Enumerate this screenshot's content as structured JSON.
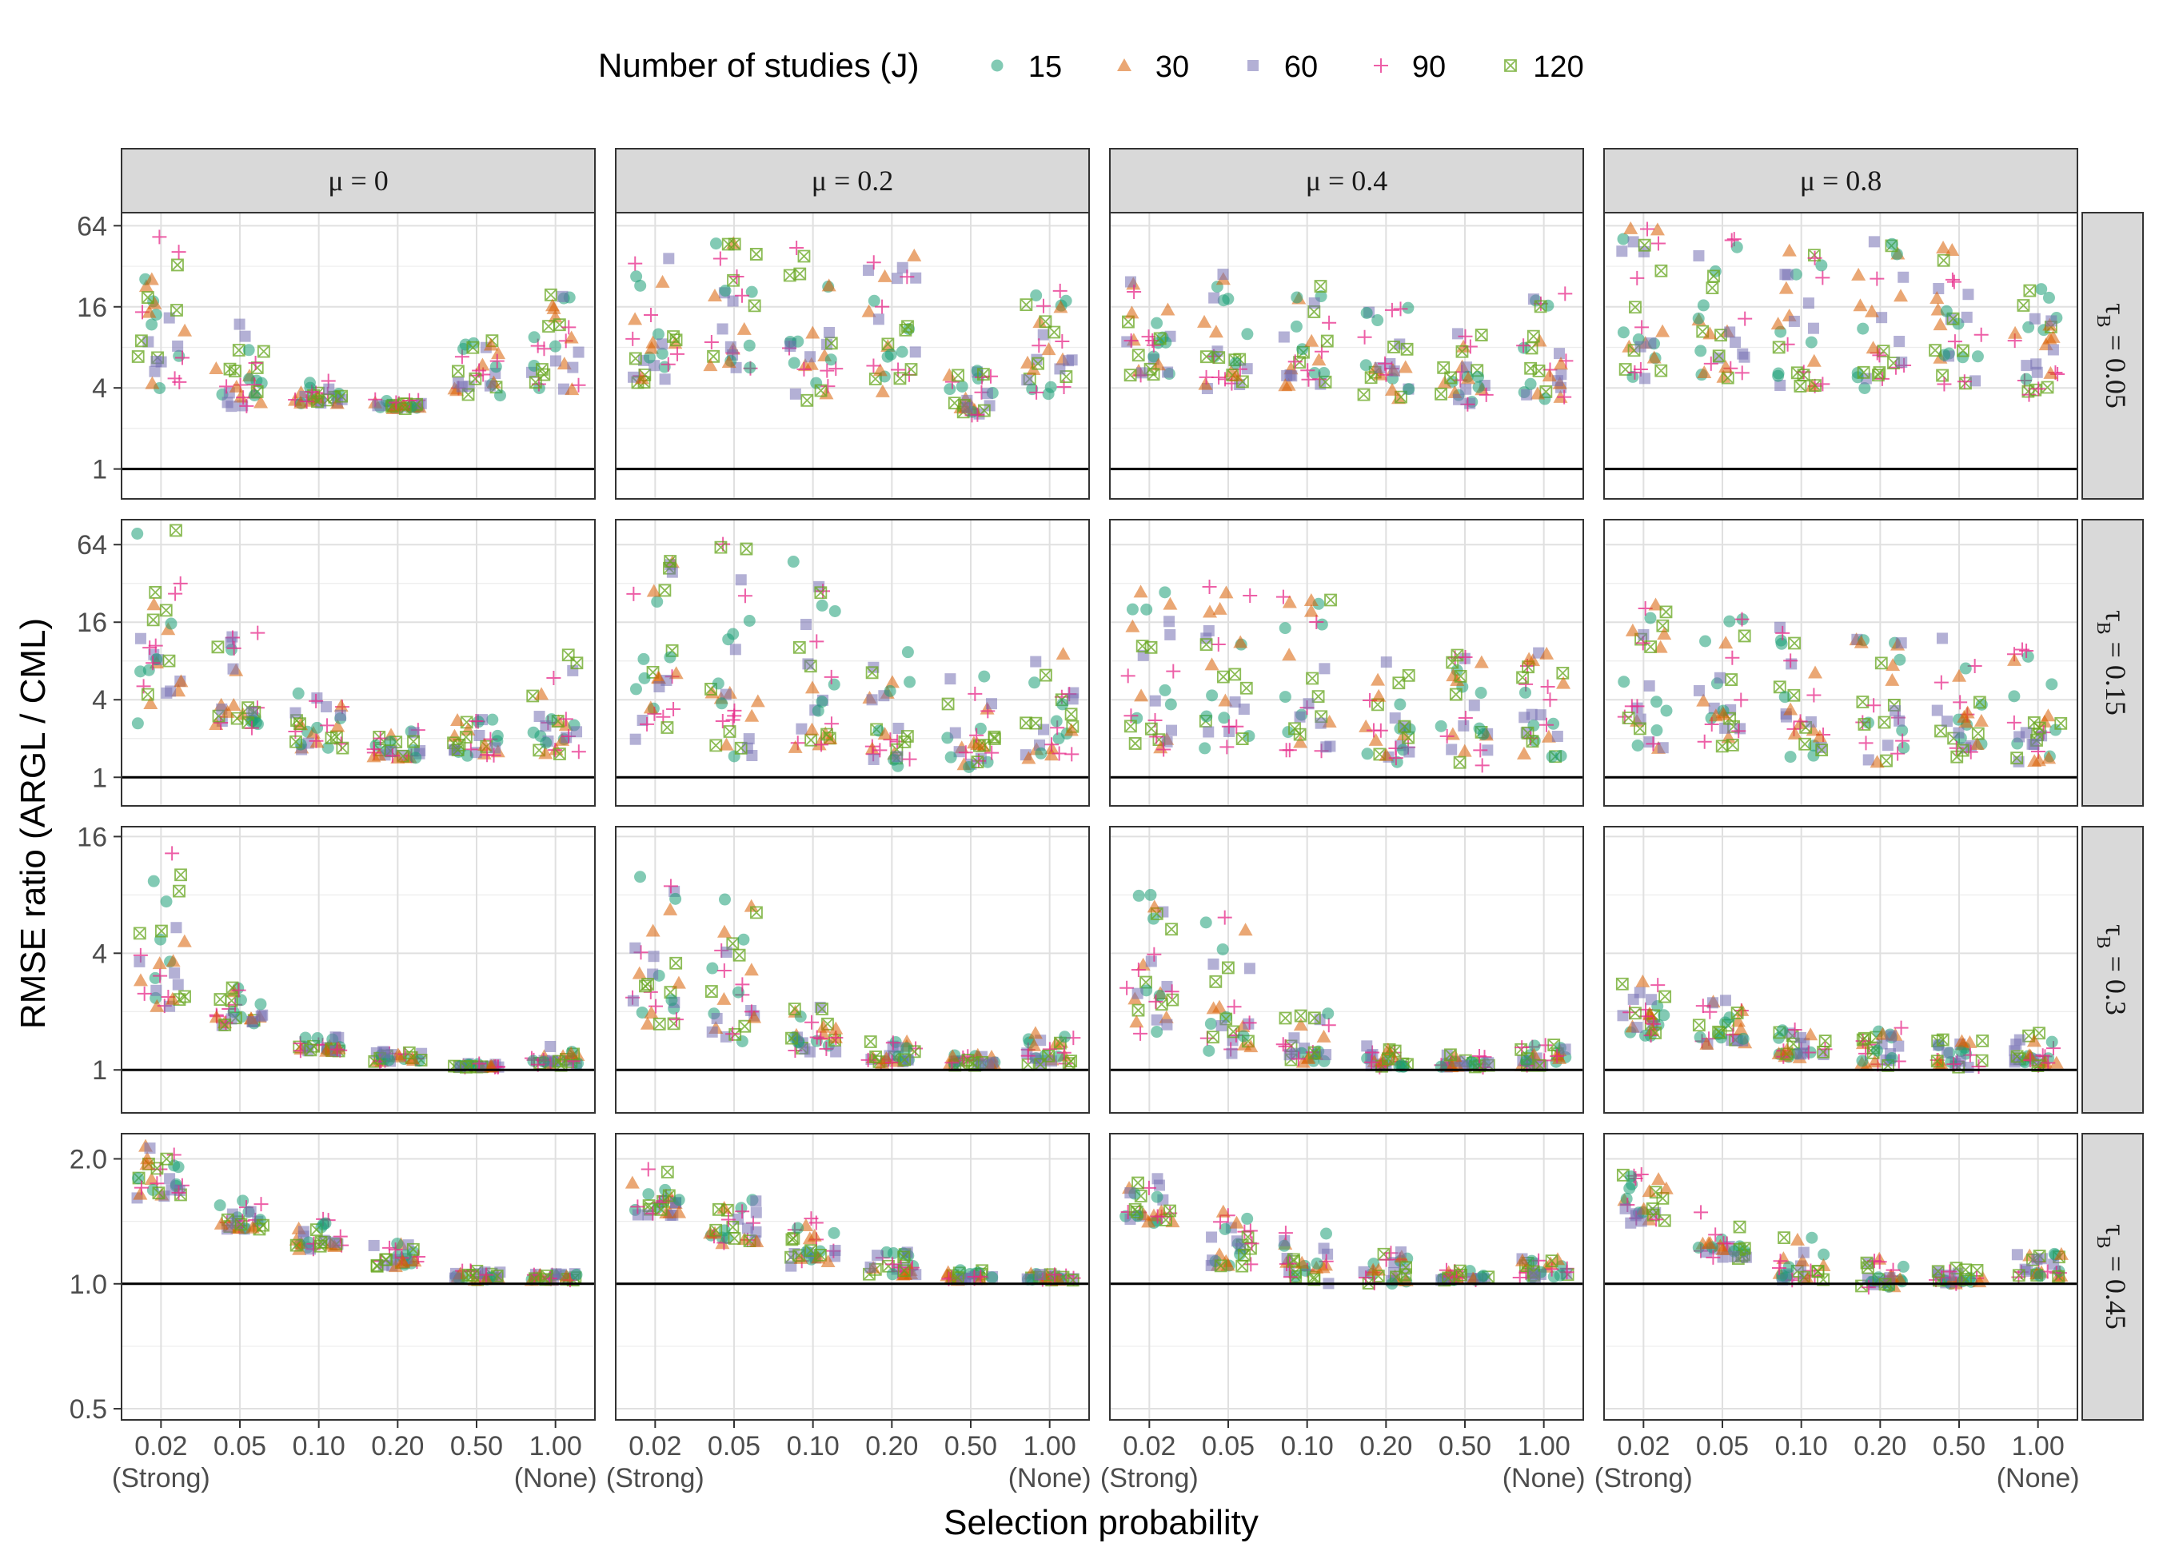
{
  "chart_data": {
    "type": "scatter",
    "xlabel": "Selection probability",
    "ylabel": "RMSE ratio (ARGL / CML)",
    "x_ticks": [
      "0.02",
      "0.05",
      "0.10",
      "0.20",
      "0.50",
      "1.00"
    ],
    "x_extreme_labels": {
      "first": "(Strong)",
      "last": "(None)"
    },
    "legend": {
      "title": "Number of studies (J)",
      "position": "top",
      "entries": [
        {
          "label": "15",
          "shape": "circle",
          "color": "#1b9e77"
        },
        {
          "label": "30",
          "shape": "triangle",
          "color": "#d95f02"
        },
        {
          "label": "60",
          "shape": "square",
          "color": "#7570b3"
        },
        {
          "label": "90",
          "shape": "plus",
          "color": "#e7298a"
        },
        {
          "label": "120",
          "shape": "boxed-x",
          "color": "#66a61e"
        }
      ]
    },
    "columns": [
      {
        "label_sym": "μ",
        "label_val": " = 0",
        "mu": 0
      },
      {
        "label_sym": "μ",
        "label_val": " = 0.2",
        "mu": 0.2
      },
      {
        "label_sym": "μ",
        "label_val": " = 0.4",
        "mu": 0.4
      },
      {
        "label_sym": "μ",
        "label_val": " = 0.8",
        "mu": 0.8
      }
    ],
    "rows": [
      {
        "label_sym": "τ",
        "label_sub": "B",
        "label_val": " = 0.05",
        "tau": 0.05,
        "scale": "log2",
        "ylim": [
          0.6,
          80
        ],
        "yticks": [
          1,
          4,
          16,
          64
        ],
        "ytick_labels": [
          "1",
          "4",
          "16",
          "64"
        ]
      },
      {
        "label_sym": "τ",
        "label_sub": "B",
        "label_val": " = 0.15",
        "tau": 0.15,
        "scale": "log2",
        "ylim": [
          0.6,
          100
        ],
        "yticks": [
          1,
          4,
          16,
          64
        ],
        "ytick_labels": [
          "1",
          "4",
          "16",
          "64"
        ]
      },
      {
        "label_sym": "τ",
        "label_sub": "B",
        "label_val": " = 0.3",
        "tau": 0.3,
        "scale": "log2",
        "ylim": [
          0.6,
          18
        ],
        "yticks": [
          1,
          4,
          16
        ],
        "ytick_labels": [
          "1",
          "4",
          "16"
        ]
      },
      {
        "label_sym": "τ",
        "label_sub": "B",
        "label_val": " = 0.45",
        "tau": 0.45,
        "scale": "log2",
        "ylim": [
          0.47,
          2.3
        ],
        "yticks": [
          0.5,
          1,
          2
        ],
        "ytick_labels": [
          "0.5",
          "1.0",
          "2.0"
        ]
      }
    ],
    "reference_line": 1,
    "grid": true,
    "series_summary": [
      [
        [
          [
            3.3,
            60
          ],
          [
            2.9,
            12
          ],
          [
            3.0,
            4.6
          ],
          [
            2.8,
            3.3
          ],
          [
            3.4,
            13
          ],
          [
            3.8,
            20
          ]
        ],
        [
          [
            4.3,
            50
          ],
          [
            4.6,
            55
          ],
          [
            3.2,
            58
          ],
          [
            3.7,
            40
          ],
          [
            2.4,
            5.5
          ],
          [
            3.6,
            23
          ]
        ],
        [
          [
            4.9,
            34
          ],
          [
            3.9,
            30
          ],
          [
            4.1,
            23
          ],
          [
            3.2,
            17
          ],
          [
            3.0,
            12
          ],
          [
            3.3,
            22
          ]
        ],
        [
          [
            4.1,
            72
          ],
          [
            4.6,
            63
          ],
          [
            3.9,
            58
          ],
          [
            3.9,
            52
          ],
          [
            3.8,
            44
          ],
          [
            3.5,
            22
          ]
        ]
      ],
      [
        [
          [
            2.6,
            85
          ],
          [
            2.3,
            14
          ],
          [
            1.5,
            5.0
          ],
          [
            1.4,
            2.4
          ],
          [
            1.4,
            2.9
          ],
          [
            1.5,
            9.5
          ]
        ],
        [
          [
            1.9,
            75
          ],
          [
            1.4,
            70
          ],
          [
            1.7,
            50
          ],
          [
            1.2,
            10
          ],
          [
            1.2,
            6.5
          ],
          [
            1.4,
            9.5
          ]
        ],
        [
          [
            1.6,
            35
          ],
          [
            1.5,
            32
          ],
          [
            1.4,
            28
          ],
          [
            1.3,
            9.5
          ],
          [
            1.2,
            9.0
          ],
          [
            1.3,
            10
          ]
        ],
        [
          [
            1.6,
            24
          ],
          [
            1.7,
            20
          ],
          [
            1.4,
            15
          ],
          [
            1.3,
            13
          ],
          [
            1.3,
            12
          ],
          [
            1.3,
            10.5
          ]
        ]
      ],
      [
        [
          [
            1.9,
            16
          ],
          [
            1.6,
            2.7
          ],
          [
            1.25,
            1.5
          ],
          [
            1.1,
            1.25
          ],
          [
            1.03,
            1.08
          ],
          [
            1.05,
            1.35
          ]
        ],
        [
          [
            1.6,
            10
          ],
          [
            1.4,
            8.5
          ],
          [
            1.2,
            2.2
          ],
          [
            1.08,
            1.4
          ],
          [
            1.05,
            1.2
          ],
          [
            1.05,
            1.55
          ]
        ],
        [
          [
            1.5,
            8.5
          ],
          [
            1.2,
            7.0
          ],
          [
            1.08,
            2.0
          ],
          [
            1.03,
            1.4
          ],
          [
            1.03,
            1.2
          ],
          [
            1.05,
            1.35
          ]
        ],
        [
          [
            1.5,
            3.0
          ],
          [
            1.35,
            2.3
          ],
          [
            1.15,
            1.65
          ],
          [
            1.05,
            1.65
          ],
          [
            1.03,
            1.45
          ],
          [
            1.05,
            1.55
          ]
        ]
      ],
      [
        [
          [
            1.6,
            2.2
          ],
          [
            1.35,
            1.6
          ],
          [
            1.2,
            1.45
          ],
          [
            1.1,
            1.25
          ],
          [
            1.02,
            1.08
          ],
          [
            1.02,
            1.06
          ]
        ],
        [
          [
            1.45,
            1.95
          ],
          [
            1.25,
            1.6
          ],
          [
            1.1,
            1.45
          ],
          [
            1.05,
            1.2
          ],
          [
            1.02,
            1.08
          ],
          [
            1.02,
            1.06
          ]
        ],
        [
          [
            1.4,
            1.8
          ],
          [
            1.1,
            1.55
          ],
          [
            1.0,
            1.4
          ],
          [
            1.0,
            1.2
          ],
          [
            1.02,
            1.08
          ],
          [
            1.03,
            1.15
          ]
        ],
        [
          [
            1.4,
            1.85
          ],
          [
            1.15,
            1.5
          ],
          [
            1.02,
            1.3
          ],
          [
            0.98,
            1.15
          ],
          [
            1.0,
            1.1
          ],
          [
            1.03,
            1.2
          ]
        ]
      ]
    ]
  }
}
